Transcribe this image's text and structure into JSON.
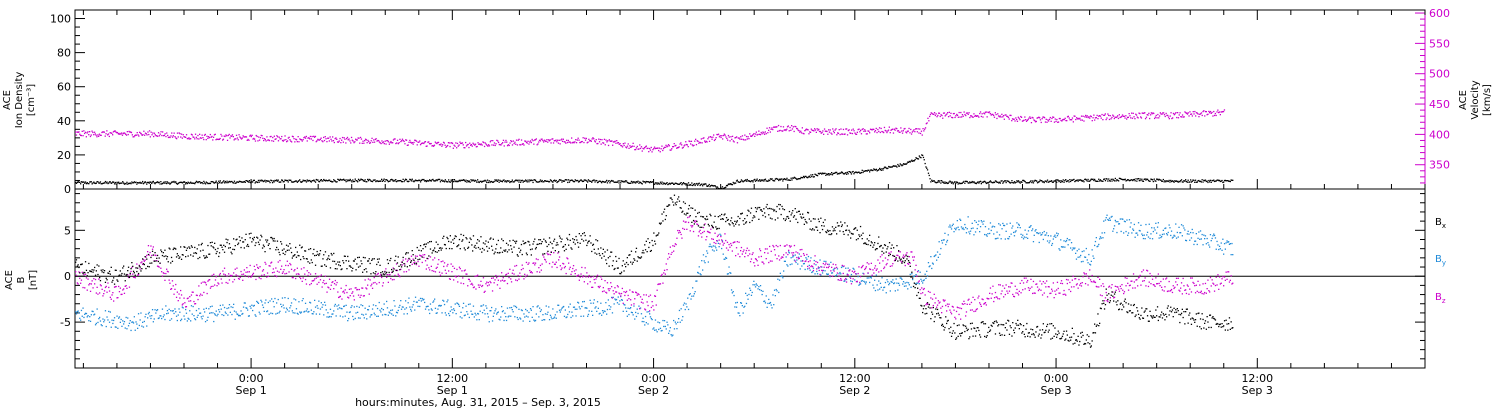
{
  "colors": {
    "black": "#000000",
    "magenta": "#cc00cc",
    "blue": "#1f8ad8"
  },
  "chart_data": [
    {
      "type": "scatter",
      "x_axis": {
        "label": "hours:minutes, Aug. 31, 2015 – Sep. 3, 2015",
        "range": [
          "2015-08-31T13:30",
          "2015-09-03T22:00"
        ],
        "major_ticks": [
          {
            "time": "2015-09-01T00:00",
            "hm": "0:00",
            "day": "Sep 1"
          },
          {
            "time": "2015-09-01T12:00",
            "hm": "12:00",
            "day": "Sep 1"
          },
          {
            "time": "2015-09-02T00:00",
            "hm": "0:00",
            "day": "Sep 2"
          },
          {
            "time": "2015-09-02T12:00",
            "hm": "12:00",
            "day": "Sep 2"
          },
          {
            "time": "2015-09-03T00:00",
            "hm": "0:00",
            "day": "Sep 3"
          },
          {
            "time": "2015-09-03T12:00",
            "hm": "12:00",
            "day": "Sep 3"
          }
        ],
        "minor_tick_hours": 2
      },
      "left_axis": {
        "label_lines": [
          "ACE",
          "Ion Density",
          "[cm⁻³]"
        ],
        "range": [
          0,
          105
        ],
        "ticks": [
          0,
          20,
          40,
          60,
          80,
          100
        ]
      },
      "right_axis": {
        "label_lines": [
          "ACE",
          "Velocity",
          "[km/s]"
        ],
        "range": [
          310,
          605
        ],
        "ticks": [
          350,
          400,
          450,
          500,
          550,
          600
        ],
        "color": "#cc00cc"
      },
      "series": [
        {
          "axis": "left",
          "color": "#000000",
          "points": [
            [
              "2015-08-31T13:30",
              4
            ],
            [
              "2015-08-31T20:00",
              4
            ],
            [
              "2015-09-01T02:00",
              5
            ],
            [
              "2015-09-01T08:00",
              5.5
            ],
            [
              "2015-09-01T14:00",
              5
            ],
            [
              "2015-09-01T20:00",
              5
            ],
            [
              "2015-09-02T00:00",
              4
            ],
            [
              "2015-09-02T03:00",
              3
            ],
            [
              "2015-09-02T04:00",
              1
            ],
            [
              "2015-09-02T05:00",
              5
            ],
            [
              "2015-09-02T08:00",
              6
            ],
            [
              "2015-09-02T10:00",
              9
            ],
            [
              "2015-09-02T12:00",
              10
            ],
            [
              "2015-09-02T13:30",
              12
            ],
            [
              "2015-09-02T15:00",
              15
            ],
            [
              "2015-09-02T16:00",
              20
            ],
            [
              "2015-09-02T16:30",
              5
            ],
            [
              "2015-09-02T18:00",
              4
            ],
            [
              "2015-09-03T00:00",
              5
            ],
            [
              "2015-09-03T04:00",
              6
            ],
            [
              "2015-09-03T07:00",
              5
            ],
            [
              "2015-09-03T09:00",
              5
            ],
            [
              "2015-09-03T10:30",
              5
            ]
          ]
        },
        {
          "axis": "right",
          "color": "#cc00cc",
          "points": [
            [
              "2015-08-31T13:30",
              402
            ],
            [
              "2015-08-31T18:00",
              402
            ],
            [
              "2015-08-31T20:00",
              398
            ],
            [
              "2015-09-01T00:00",
              395
            ],
            [
              "2015-09-01T04:00",
              393
            ],
            [
              "2015-09-01T08:00",
              390
            ],
            [
              "2015-09-01T12:00",
              383
            ],
            [
              "2015-09-01T16:00",
              388
            ],
            [
              "2015-09-01T20:00",
              392
            ],
            [
              "2015-09-01T22:00",
              385
            ],
            [
              "2015-09-02T00:00",
              375
            ],
            [
              "2015-09-02T02:00",
              385
            ],
            [
              "2015-09-02T04:00",
              398
            ],
            [
              "2015-09-02T05:00",
              392
            ],
            [
              "2015-09-02T06:00",
              400
            ],
            [
              "2015-09-02T07:00",
              410
            ],
            [
              "2015-09-02T08:00",
              412
            ],
            [
              "2015-09-02T09:00",
              406
            ],
            [
              "2015-09-02T12:00",
              405
            ],
            [
              "2015-09-02T14:00",
              408
            ],
            [
              "2015-09-02T16:00",
              405
            ],
            [
              "2015-09-02T16:30",
              432
            ],
            [
              "2015-09-02T20:00",
              434
            ],
            [
              "2015-09-02T22:00",
              425
            ],
            [
              "2015-09-03T00:00",
              425
            ],
            [
              "2015-09-03T03:00",
              430
            ],
            [
              "2015-09-03T05:00",
              432
            ],
            [
              "2015-09-03T07:00",
              432
            ],
            [
              "2015-09-03T10:00",
              437
            ]
          ]
        }
      ]
    },
    {
      "type": "scatter",
      "x_axis": {
        "range": [
          "2015-08-31T13:30",
          "2015-09-03T22:00"
        ]
      },
      "left_axis": {
        "label_lines": [
          "ACE",
          "B",
          "[nT]"
        ],
        "range": [
          -10,
          9.5
        ],
        "ticks": [
          -5,
          0,
          5
        ],
        "zero_line": true
      },
      "legend": [
        {
          "label": "B",
          "sub": "x",
          "color": "#000000"
        },
        {
          "label": "B",
          "sub": "y",
          "color": "#1f8ad8"
        },
        {
          "label": "B",
          "sub": "z",
          "color": "#cc00cc"
        }
      ],
      "series": [
        {
          "name": "Bx",
          "color": "#000000",
          "points": [
            [
              "2015-08-31T13:30",
              1
            ],
            [
              "2015-08-31T16:00",
              0
            ],
            [
              "2015-08-31T18:00",
              2
            ],
            [
              "2015-08-31T22:00",
              3
            ],
            [
              "2015-09-01T00:00",
              4
            ],
            [
              "2015-09-01T04:00",
              2
            ],
            [
              "2015-09-01T08:00",
              1
            ],
            [
              "2015-09-01T12:00",
              4
            ],
            [
              "2015-09-01T16:00",
              3
            ],
            [
              "2015-09-01T20:00",
              4
            ],
            [
              "2015-09-01T22:00",
              1
            ],
            [
              "2015-09-02T00:00",
              4
            ],
            [
              "2015-09-02T01:00",
              8.5
            ],
            [
              "2015-09-02T02:00",
              7
            ],
            [
              "2015-09-02T03:00",
              6
            ],
            [
              "2015-09-02T05:00",
              6
            ],
            [
              "2015-09-02T06:00",
              7
            ],
            [
              "2015-09-02T08:00",
              7
            ],
            [
              "2015-09-02T10:00",
              5.5
            ],
            [
              "2015-09-02T12:00",
              5
            ],
            [
              "2015-09-02T14:00",
              3
            ],
            [
              "2015-09-02T15:00",
              2
            ],
            [
              "2015-09-02T16:00",
              -3
            ],
            [
              "2015-09-02T18:00",
              -6
            ],
            [
              "2015-09-02T21:00",
              -5.5
            ],
            [
              "2015-09-03T00:00",
              -6
            ],
            [
              "2015-09-03T02:00",
              -7
            ],
            [
              "2015-09-03T03:00",
              -2
            ],
            [
              "2015-09-03T05:00",
              -4
            ],
            [
              "2015-09-03T07:00",
              -4
            ],
            [
              "2015-09-03T09:00",
              -5
            ],
            [
              "2015-09-03T10:30",
              -5
            ]
          ]
        },
        {
          "name": "By",
          "color": "#1f8ad8",
          "points": [
            [
              "2015-08-31T13:30",
              -4
            ],
            [
              "2015-08-31T17:00",
              -5
            ],
            [
              "2015-08-31T19:00",
              -4
            ],
            [
              "2015-08-31T22:00",
              -4
            ],
            [
              "2015-09-01T02:00",
              -3
            ],
            [
              "2015-09-01T06:00",
              -4
            ],
            [
              "2015-09-01T10:00",
              -3
            ],
            [
              "2015-09-01T14:00",
              -4
            ],
            [
              "2015-09-01T18:00",
              -4
            ],
            [
              "2015-09-01T22:00",
              -3
            ],
            [
              "2015-09-02T00:00",
              -5
            ],
            [
              "2015-09-02T01:00",
              -6
            ],
            [
              "2015-09-02T02:00",
              -3
            ],
            [
              "2015-09-02T03:00",
              2
            ],
            [
              "2015-09-02T04:00",
              4
            ],
            [
              "2015-09-02T05:00",
              -4
            ],
            [
              "2015-09-02T06:00",
              -1
            ],
            [
              "2015-09-02T07:00",
              -3
            ],
            [
              "2015-09-02T08:00",
              2
            ],
            [
              "2015-09-02T10:00",
              1
            ],
            [
              "2015-09-02T12:00",
              0
            ],
            [
              "2015-09-02T14:00",
              -1
            ],
            [
              "2015-09-02T16:00",
              0
            ],
            [
              "2015-09-02T18:00",
              6
            ],
            [
              "2015-09-02T20:00",
              5
            ],
            [
              "2015-09-02T22:00",
              5
            ],
            [
              "2015-09-03T00:00",
              4
            ],
            [
              "2015-09-03T02:00",
              2
            ],
            [
              "2015-09-03T03:00",
              6
            ],
            [
              "2015-09-03T05:00",
              5
            ],
            [
              "2015-09-03T07:00",
              5
            ],
            [
              "2015-09-03T09:00",
              4
            ],
            [
              "2015-09-03T10:30",
              3
            ]
          ]
        },
        {
          "name": "Bz",
          "color": "#cc00cc",
          "points": [
            [
              "2015-08-31T13:30",
              0
            ],
            [
              "2015-08-31T16:00",
              -2
            ],
            [
              "2015-08-31T18:00",
              3
            ],
            [
              "2015-08-31T20:00",
              -3
            ],
            [
              "2015-08-31T22:00",
              0
            ],
            [
              "2015-09-01T02:00",
              1
            ],
            [
              "2015-09-01T06:00",
              -2
            ],
            [
              "2015-09-01T10:00",
              2
            ],
            [
              "2015-09-01T14:00",
              -1
            ],
            [
              "2015-09-01T18:00",
              2
            ],
            [
              "2015-09-01T22:00",
              -2
            ],
            [
              "2015-09-02T00:00",
              -3
            ],
            [
              "2015-09-02T01:00",
              3
            ],
            [
              "2015-09-02T02:00",
              6
            ],
            [
              "2015-09-02T03:00",
              5
            ],
            [
              "2015-09-02T04:00",
              4
            ],
            [
              "2015-09-02T06:00",
              2
            ],
            [
              "2015-09-02T08:00",
              3
            ],
            [
              "2015-09-02T10:00",
              1
            ],
            [
              "2015-09-02T12:00",
              0
            ],
            [
              "2015-09-02T14:00",
              2
            ],
            [
              "2015-09-02T15:30",
              2
            ],
            [
              "2015-09-02T16:00",
              -2
            ],
            [
              "2015-09-02T18:00",
              -4
            ],
            [
              "2015-09-02T20:00",
              -2
            ],
            [
              "2015-09-02T22:00",
              -1
            ],
            [
              "2015-09-03T00:00",
              -1.5
            ],
            [
              "2015-09-03T02:00",
              0
            ],
            [
              "2015-09-03T03:00",
              -2
            ],
            [
              "2015-09-03T05:00",
              0
            ],
            [
              "2015-09-03T07:00",
              -1
            ],
            [
              "2015-09-03T09:00",
              -1
            ],
            [
              "2015-09-03T10:30",
              0
            ]
          ]
        }
      ]
    }
  ]
}
